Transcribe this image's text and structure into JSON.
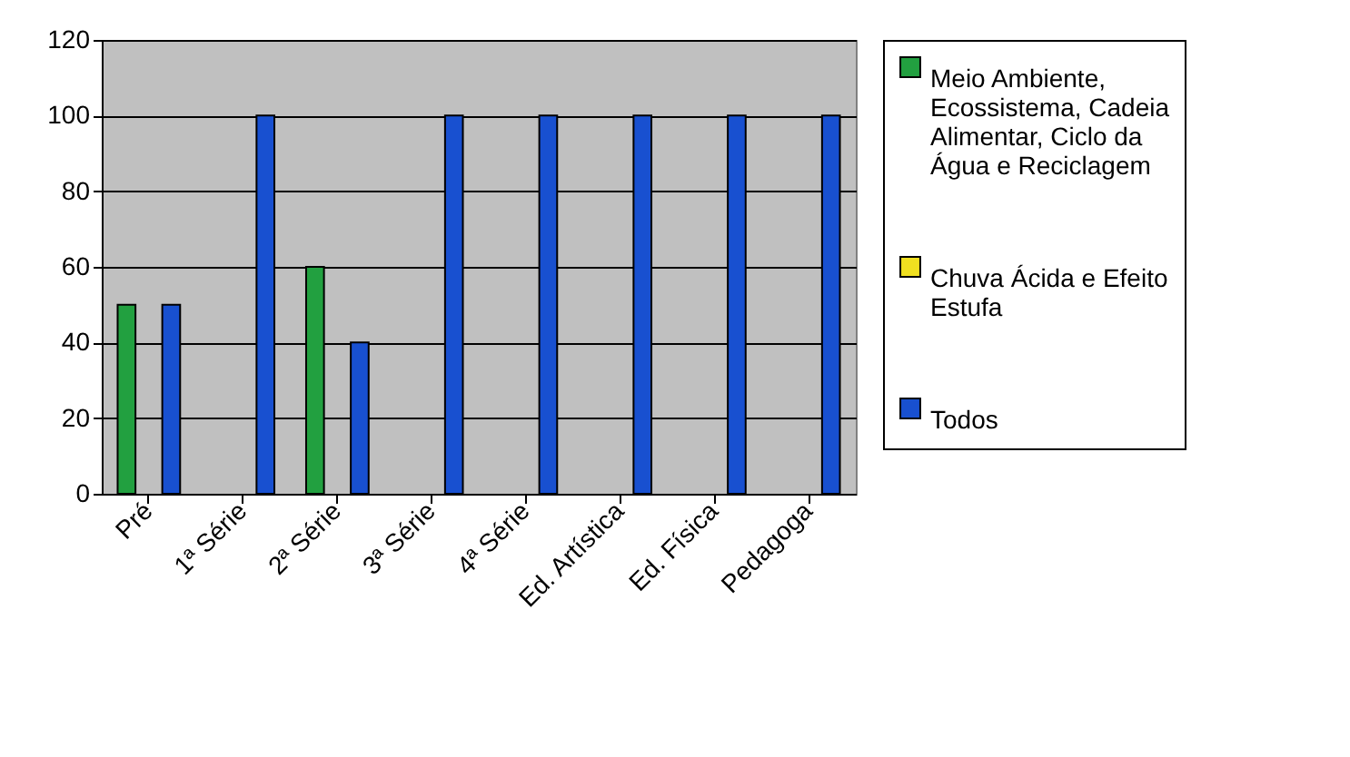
{
  "chart_data": {
    "type": "bar",
    "categories": [
      "Pré",
      "1ª Série",
      "2ª Série",
      "3ª Série",
      "4ª Série",
      "Ed. Artística",
      "Ed. Física",
      "Pedagoga"
    ],
    "series": [
      {
        "name": "Meio Ambiente, Ecossistema, Cadeia Alimentar, Ciclo da Água e Reciclagem",
        "color": "#22a040",
        "values": [
          50,
          null,
          60,
          null,
          null,
          null,
          null,
          null
        ]
      },
      {
        "name": "Chuva Ácida e Efeito Estufa",
        "color": "#f0e020",
        "values": [
          null,
          null,
          null,
          null,
          null,
          null,
          null,
          null
        ]
      },
      {
        "name": "Todos",
        "color": "#1850d0",
        "values": [
          50,
          100,
          40,
          100,
          100,
          100,
          100,
          100
        ]
      }
    ],
    "ylim": [
      0,
      120
    ],
    "yticks": [
      0,
      20,
      40,
      60,
      80,
      100,
      120
    ],
    "grid": "y",
    "legend": "right"
  }
}
